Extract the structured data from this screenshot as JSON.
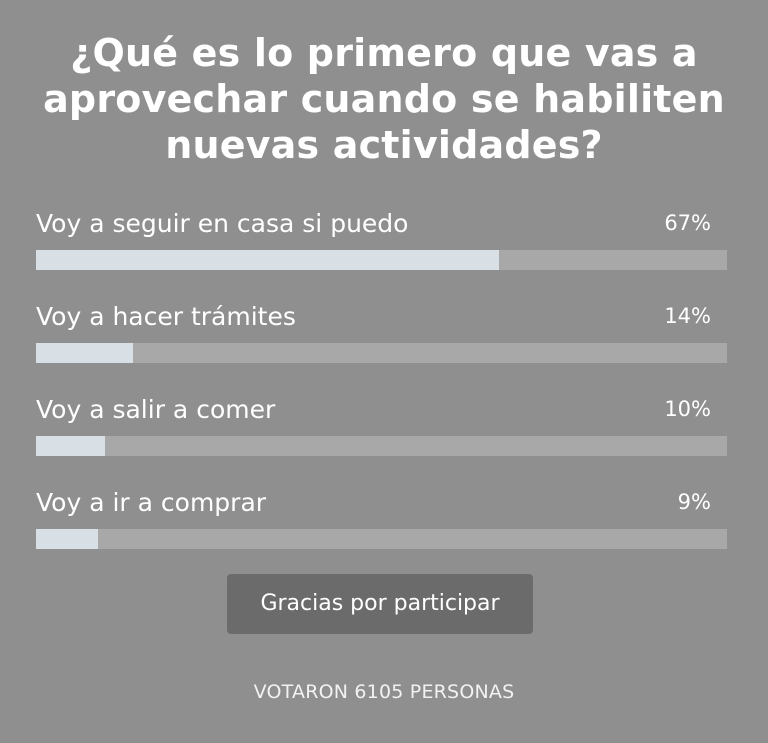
{
  "poll": {
    "title": "¿Qué es lo primero que vas a aprovechar cuando se habiliten nuevas actividades?",
    "options": [
      {
        "label": "Voy a seguir en casa si puedo",
        "percent_text": "67%",
        "percent": 67
      },
      {
        "label": "Voy a hacer trámites",
        "percent_text": "14%",
        "percent": 14
      },
      {
        "label": "Voy a salir a comer",
        "percent_text": "10%",
        "percent": 10
      },
      {
        "label": "Voy a ir a comprar",
        "percent_text": "9%",
        "percent": 9
      }
    ],
    "thanks_label": "Gracias por participar",
    "votes_text": "VOTARON 6105 PERSONAS"
  },
  "colors": {
    "background": "#8f8f8f",
    "bar_track": "#a8a8a8",
    "bar_fill": "#d8e0e6",
    "button": "#6b6b6b",
    "text": "#ffffff"
  }
}
